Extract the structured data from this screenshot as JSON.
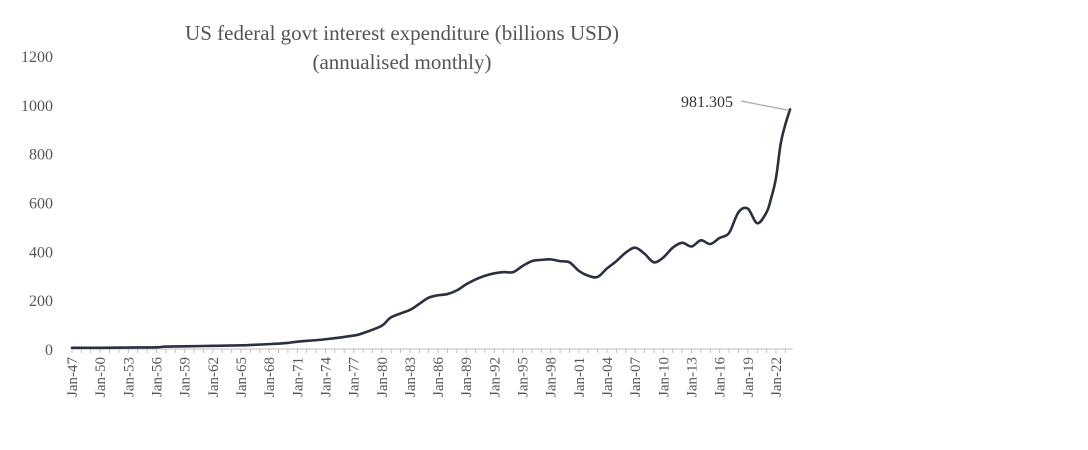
{
  "chart_data": {
    "type": "line",
    "title": "US  federal govt interest expenditure (billions USD)",
    "subtitle": "(annualised monthly)",
    "xlabel": "",
    "ylabel": "",
    "ylim": [
      0,
      1200
    ],
    "yticks": [
      0,
      200,
      400,
      600,
      800,
      1000,
      1200
    ],
    "ytick_labels": [
      "0",
      "200",
      "400",
      "600",
      "800",
      "1000",
      "1200"
    ],
    "xlim": [
      1947.0,
      2023.6
    ],
    "xticks": [
      1947,
      1950,
      1953,
      1956,
      1959,
      1962,
      1965,
      1968,
      1971,
      1974,
      1977,
      1980,
      1983,
      1986,
      1989,
      1992,
      1995,
      1998,
      2001,
      2004,
      2007,
      2010,
      2013,
      2016,
      2019,
      2022
    ],
    "xtick_labels": [
      "Jan-47",
      "Jan-50",
      "Jan-53",
      "Jan-56",
      "Jan-59",
      "Jan-62",
      "Jan-65",
      "Jan-68",
      "Jan-71",
      "Jan-74",
      "Jan-77",
      "Jan-80",
      "Jan-83",
      "Jan-86",
      "Jan-89",
      "Jan-92",
      "Jan-95",
      "Jan-98",
      "Jan-01",
      "Jan-04",
      "Jan-07",
      "Jan-10",
      "Jan-13",
      "Jan-16",
      "Jan-19",
      "Jan-22"
    ],
    "grid": false,
    "legend": "none",
    "series": [
      {
        "name": "US federal govt interest expenditure",
        "color": "#2b3040",
        "x": [
          1947.0,
          1950.0,
          1953.0,
          1956.0,
          1957.0,
          1959.0,
          1962.0,
          1965.0,
          1968.0,
          1970.0,
          1971.0,
          1974.0,
          1977.0,
          1978.0,
          1980.0,
          1981.0,
          1983.0,
          1984.0,
          1985.0,
          1986.0,
          1987.0,
          1988.0,
          1989.0,
          1990.0,
          1991.0,
          1992.0,
          1993.0,
          1994.0,
          1995.0,
          1996.0,
          1997.0,
          1998.0,
          1999.0,
          2000.0,
          2001.0,
          2002.0,
          2003.0,
          2004.0,
          2005.0,
          2006.0,
          2007.0,
          2008.0,
          2009.0,
          2010.0,
          2011.0,
          2012.0,
          2013.0,
          2014.0,
          2015.0,
          2016.0,
          2017.0,
          2018.0,
          2019.0,
          2020.0,
          2021.0,
          2021.5,
          2022.0,
          2022.5,
          2023.0,
          2023.5
        ],
        "values": [
          5,
          5,
          6,
          7,
          10,
          11,
          13,
          15,
          20,
          25,
          30,
          40,
          55,
          65,
          95,
          130,
          160,
          185,
          210,
          220,
          225,
          240,
          265,
          285,
          300,
          310,
          315,
          315,
          340,
          360,
          365,
          367,
          360,
          355,
          320,
          300,
          295,
          330,
          360,
          395,
          415,
          390,
          355,
          375,
          415,
          435,
          420,
          445,
          430,
          455,
          475,
          560,
          575,
          515,
          560,
          620,
          700,
          840,
          920,
          981.305
        ]
      }
    ],
    "annotations": [
      {
        "text": "981.305",
        "x": 2023.5,
        "y": 981.305
      }
    ]
  }
}
